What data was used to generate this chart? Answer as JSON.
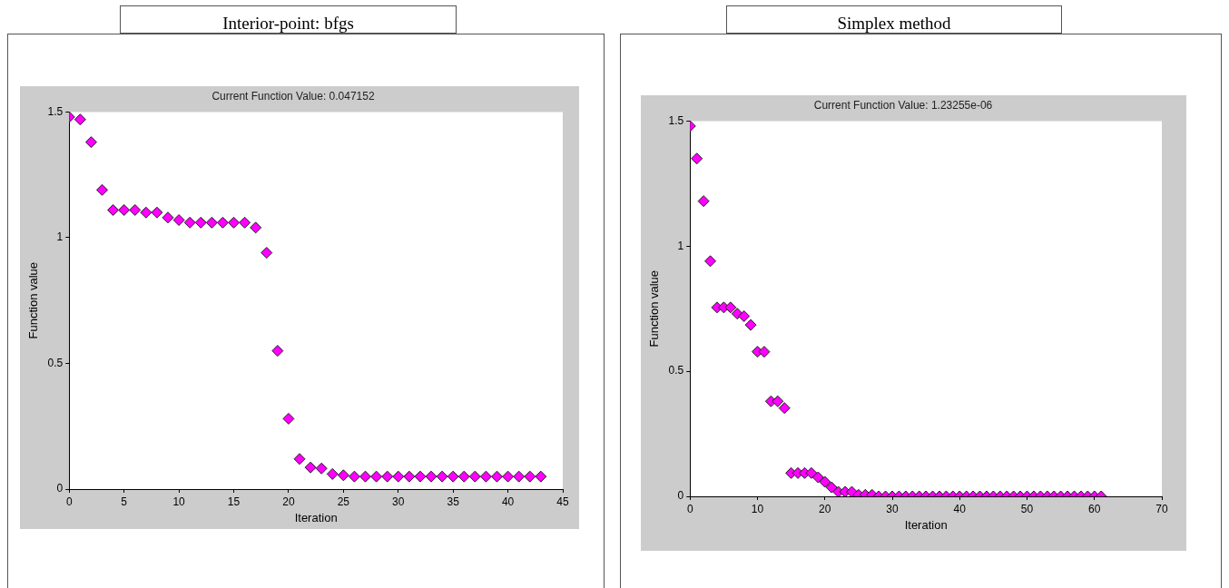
{
  "chart_data": [
    {
      "type": "scatter",
      "title": "Interior-point: bfgs",
      "subtitle": "Current Function Value: 0.047152",
      "xlabel": "Iteration",
      "ylabel": "Function value",
      "color": "#ff00ff",
      "marker": "diamond",
      "x": [
        0,
        1,
        2,
        3,
        4,
        5,
        6,
        7,
        8,
        9,
        10,
        11,
        12,
        13,
        14,
        15,
        16,
        17,
        18,
        19,
        20,
        21,
        22,
        23,
        24,
        25,
        26,
        27,
        28,
        29,
        30,
        31,
        32,
        33,
        34,
        35,
        36,
        37,
        38,
        39,
        40,
        41,
        42,
        43
      ],
      "values": [
        1.48,
        1.47,
        1.38,
        1.19,
        1.11,
        1.11,
        1.11,
        1.1,
        1.1,
        1.08,
        1.07,
        1.06,
        1.06,
        1.06,
        1.06,
        1.06,
        1.06,
        1.04,
        0.94,
        0.55,
        0.28,
        0.12,
        0.086,
        0.082,
        0.06,
        0.055,
        0.05,
        0.05,
        0.05,
        0.05,
        0.05,
        0.05,
        0.05,
        0.05,
        0.05,
        0.05,
        0.05,
        0.05,
        0.05,
        0.05,
        0.05,
        0.05,
        0.05,
        0.05
      ],
      "xlim": [
        0,
        45
      ],
      "xticks": [
        0,
        5,
        10,
        15,
        20,
        25,
        30,
        35,
        40,
        45
      ],
      "ylim": [
        0,
        1.5
      ],
      "yticks": [
        0,
        0.5,
        1,
        1.5
      ]
    },
    {
      "type": "scatter",
      "title": "Simplex method",
      "subtitle": "Current Function Value: 1.23255e-06",
      "xlabel": "Iteration",
      "ylabel": "Function value",
      "color": "#ff00ff",
      "marker": "diamond",
      "x": [
        0,
        1,
        2,
        3,
        4,
        5,
        6,
        7,
        8,
        9,
        10,
        11,
        12,
        13,
        14,
        15,
        16,
        17,
        18,
        19,
        20,
        21,
        22,
        23,
        24,
        25,
        26,
        27,
        28,
        29,
        30,
        31,
        32,
        33,
        34,
        35,
        36,
        37,
        38,
        39,
        40,
        41,
        42,
        43,
        44,
        45,
        46,
        47,
        48,
        49,
        50,
        51,
        52,
        53,
        54,
        55,
        56,
        57,
        58,
        59,
        60,
        61
      ],
      "values": [
        1.48,
        1.35,
        1.18,
        0.94,
        0.755,
        0.755,
        0.755,
        0.73,
        0.72,
        0.685,
        0.578,
        0.578,
        0.38,
        0.38,
        0.353,
        0.093,
        0.093,
        0.093,
        0.093,
        0.076,
        0.058,
        0.036,
        0.018,
        0.018,
        0.018,
        0.006,
        0.006,
        0.006,
        0,
        0,
        0,
        0,
        0,
        0,
        0,
        0,
        0,
        0,
        0,
        0,
        0,
        0,
        0,
        0,
        0,
        0,
        0,
        0,
        0,
        0,
        0,
        0,
        0,
        0,
        0,
        0,
        0,
        0,
        0,
        0,
        0,
        0
      ],
      "xlim": [
        0,
        70
      ],
      "xticks": [
        0,
        10,
        20,
        30,
        40,
        50,
        60,
        70
      ],
      "ylim": [
        0,
        1.5
      ],
      "yticks": [
        0,
        0.5,
        1,
        1.5
      ]
    }
  ]
}
